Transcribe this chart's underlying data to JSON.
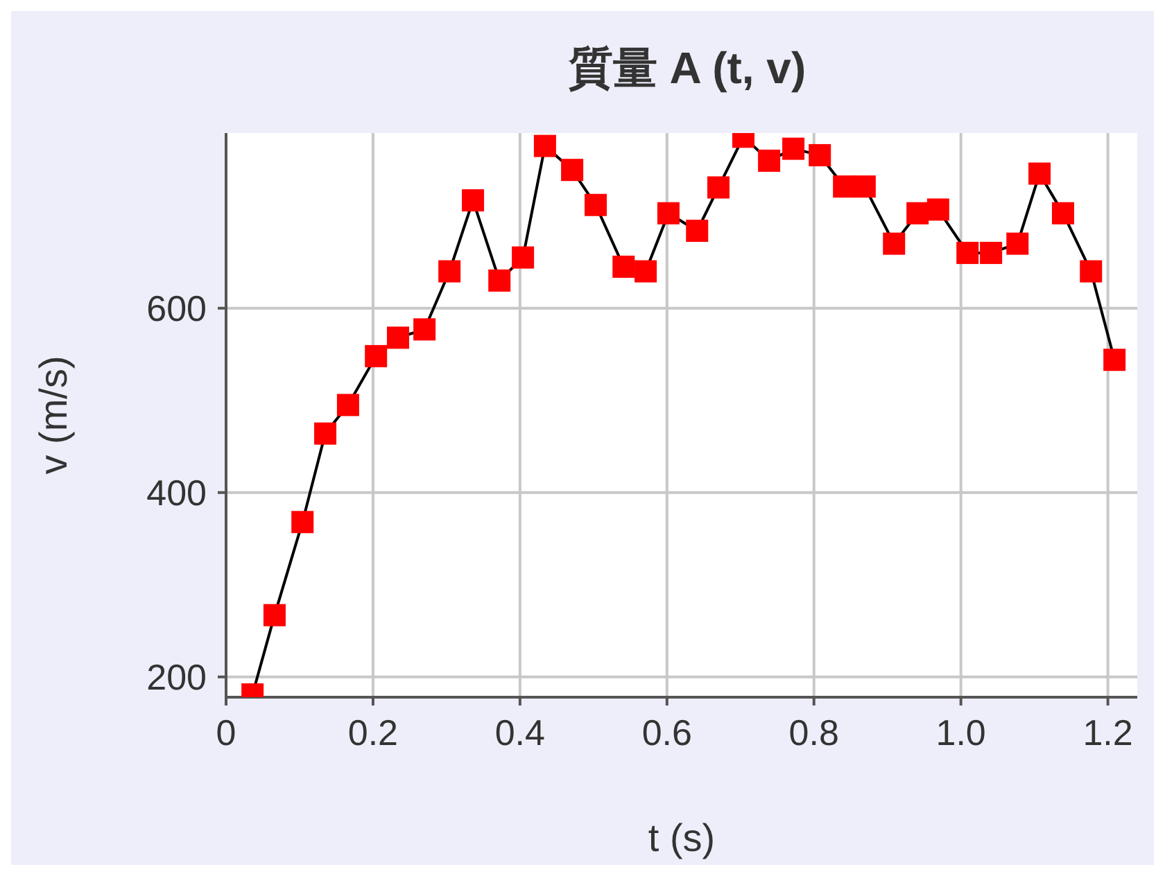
{
  "chart_data": {
    "type": "line",
    "title": "質量 A (t, v)",
    "xlabel": "t (s)",
    "ylabel": "v (m/s)",
    "x": [
      0.036,
      0.066,
      0.104,
      0.135,
      0.166,
      0.204,
      0.234,
      0.27,
      0.304,
      0.336,
      0.372,
      0.404,
      0.434,
      0.471,
      0.503,
      0.541,
      0.571,
      0.602,
      0.641,
      0.67,
      0.704,
      0.739,
      0.772,
      0.808,
      0.841,
      0.869,
      0.909,
      0.941,
      0.969,
      1.009,
      1.041,
      1.077,
      1.107,
      1.139,
      1.177,
      1.209
    ],
    "series": [
      {
        "color": "#ff0000",
        "values": [
          181,
          267,
          368,
          464,
          495,
          548,
          568,
          577,
          640,
          717,
          630,
          655,
          776,
          750,
          712,
          645,
          640,
          703,
          684,
          731,
          786,
          760,
          773,
          766,
          732,
          732,
          670,
          703,
          707,
          660,
          660,
          670,
          746,
          703,
          640,
          544
        ]
      }
    ],
    "xlim": [
      0,
      1.24
    ],
    "xticks": [
      0,
      0.2,
      0.4,
      0.6,
      0.8,
      {
        "value": 1,
        "label": "1.0"
      },
      1.2
    ],
    "ylim": [
      178,
      790
    ],
    "yticks": [
      200,
      400,
      600
    ],
    "grid": true,
    "marker": "square",
    "line_style": "solid",
    "legend": false
  }
}
